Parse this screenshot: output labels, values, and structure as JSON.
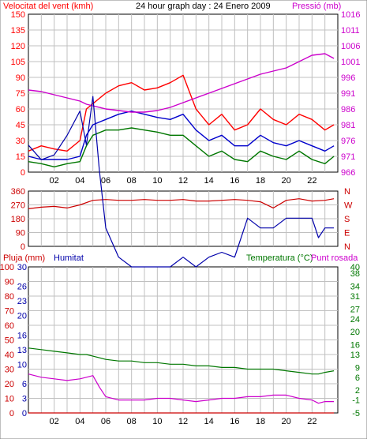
{
  "colors": {
    "background": "#ffffff",
    "grid": "#c0c0c0",
    "wind_gust": "#ff0000",
    "wind_avg": "#0000cc",
    "wind_min": "#007700",
    "pressure": "#cc00cc",
    "direction": "#cc0000",
    "humidity": "#0000aa",
    "temperature": "#007700",
    "dewpoint": "#cc00cc",
    "rain": "#cc0000"
  },
  "chart_data": [
    {
      "type": "line",
      "title": "24 hour graph day : 24 Enero 2009",
      "left_axis_label": "Velocitat del vent (kmh)",
      "right_axis_label": "Pressió (mb)",
      "x_ticks": [
        "02",
        "04",
        "06",
        "08",
        "10",
        "12",
        "14",
        "16",
        "18",
        "20",
        "22"
      ],
      "y_left_ticks": [
        0,
        15,
        30,
        45,
        60,
        75,
        90,
        105,
        120,
        135,
        150
      ],
      "y_right_ticks": [
        966,
        971,
        976,
        981,
        986,
        991,
        996,
        1001,
        1006,
        1011,
        1016
      ],
      "ylim_left": [
        0,
        150
      ],
      "ylim_right": [
        966,
        1016
      ],
      "grid": true,
      "x_hours": [
        0,
        1,
        2,
        3,
        4,
        4.5,
        5,
        6,
        7,
        8,
        9,
        10,
        11,
        12,
        13,
        14,
        15,
        16,
        17,
        18,
        19,
        20,
        21,
        22,
        23,
        23.7
      ],
      "series": [
        {
          "name": "gust",
          "axis": "left",
          "color_key": "wind_gust",
          "values": [
            20,
            25,
            22,
            20,
            30,
            60,
            65,
            75,
            82,
            85,
            78,
            80,
            85,
            92,
            60,
            45,
            55,
            40,
            45,
            60,
            50,
            45,
            55,
            50,
            40,
            45
          ]
        },
        {
          "name": "avg",
          "axis": "left",
          "color_key": "wind_avg",
          "values": [
            15,
            12,
            12,
            12,
            15,
            35,
            45,
            50,
            55,
            58,
            55,
            52,
            50,
            55,
            40,
            30,
            35,
            25,
            25,
            35,
            28,
            25,
            30,
            25,
            20,
            25
          ]
        },
        {
          "name": "min",
          "axis": "left",
          "color_key": "wind_min",
          "values": [
            10,
            8,
            5,
            8,
            10,
            25,
            35,
            40,
            40,
            42,
            40,
            38,
            35,
            35,
            25,
            15,
            20,
            12,
            10,
            20,
            15,
            12,
            20,
            12,
            8,
            15
          ]
        },
        {
          "name": "pressure",
          "axis": "right",
          "color_key": "pressure",
          "values": [
            992,
            991.5,
            990.5,
            989.5,
            988.5,
            987.5,
            987,
            986,
            985.5,
            985,
            985,
            985.5,
            986.5,
            988,
            989.5,
            991,
            992.5,
            994,
            995.5,
            997,
            998,
            999,
            1001,
            1003,
            1003.5,
            1002
          ]
        }
      ]
    },
    {
      "type": "line",
      "title": "",
      "y_left_ticks": [
        0,
        90,
        180,
        270,
        360
      ],
      "ylim": [
        0,
        360
      ],
      "right_labels": [
        "N",
        "W",
        "S",
        "E",
        "N"
      ],
      "grid": true,
      "x_hours": [
        0,
        1,
        2,
        3,
        4,
        5,
        6,
        7,
        8,
        9,
        10,
        11,
        12,
        13,
        14,
        15,
        16,
        17,
        18,
        19,
        20,
        21,
        22,
        23,
        23.7
      ],
      "series": [
        {
          "name": "direction",
          "color_key": "direction",
          "values": [
            245,
            255,
            260,
            250,
            270,
            300,
            305,
            300,
            300,
            305,
            300,
            300,
            305,
            295,
            295,
            300,
            305,
            300,
            290,
            250,
            300,
            310,
            295,
            300,
            310
          ]
        }
      ]
    },
    {
      "type": "line",
      "title": "",
      "labels": {
        "rain": "Pluja (mm)",
        "humidity": "Humitat",
        "temperature": "Temperatura (°C)",
        "dewpoint": "Punt rosada"
      },
      "y_rain_ticks": [
        0,
        10,
        20,
        30,
        40,
        50,
        60,
        70,
        80,
        90,
        100
      ],
      "y_humidity_ticks": [
        0,
        3,
        6,
        10,
        13,
        16,
        20,
        23,
        26,
        30
      ],
      "y_right_ticks": [
        -5,
        -1,
        2,
        6,
        9,
        13,
        16,
        20,
        24,
        27,
        31,
        34,
        38,
        40
      ],
      "grid": true,
      "x_hours": [
        0,
        1,
        2,
        3,
        4,
        4.5,
        5,
        5.5,
        6,
        7,
        8,
        9,
        10,
        11,
        12,
        13,
        14,
        15,
        16,
        17,
        18,
        19,
        20,
        21,
        22,
        22.5,
        23,
        23.7
      ],
      "series": [
        {
          "name": "humidity",
          "axis": "humidity",
          "color_key": "humidity",
          "values": [
            55,
            52,
            53,
            57,
            62,
            55,
            65,
            50,
            38,
            32,
            30,
            30,
            30,
            30,
            32,
            30,
            32,
            33,
            32,
            40,
            38,
            38,
            40,
            40,
            40,
            36,
            38,
            38
          ]
        },
        {
          "name": "temperature",
          "axis": "right",
          "color_key": "temperature",
          "values": [
            15,
            14.5,
            14,
            13.5,
            13,
            13,
            12.5,
            12,
            11.5,
            11,
            11,
            10.5,
            10.5,
            10,
            10,
            9.5,
            9.5,
            9,
            9,
            8.5,
            8.5,
            8.5,
            8,
            7.5,
            7,
            7,
            7.5,
            8
          ]
        },
        {
          "name": "dewpoint",
          "axis": "right",
          "color_key": "dewpoint",
          "values": [
            7,
            6,
            5.5,
            5,
            5.5,
            6,
            6.5,
            3,
            0,
            -1,
            -1,
            -1,
            -0.5,
            -0.5,
            -1,
            -1.5,
            -1,
            -0.5,
            -0.5,
            0,
            0,
            0.5,
            0.5,
            -0.5,
            -1,
            -2,
            -1.5,
            -1.5
          ]
        },
        {
          "name": "rain",
          "axis": "rain",
          "color_key": "rain",
          "values": [
            0,
            0,
            0,
            0,
            0,
            0,
            0,
            0,
            0,
            0,
            0,
            0,
            0,
            0,
            0,
            0,
            0,
            0,
            0,
            0,
            0,
            0,
            0,
            0,
            0,
            0,
            0,
            0
          ]
        }
      ]
    }
  ]
}
